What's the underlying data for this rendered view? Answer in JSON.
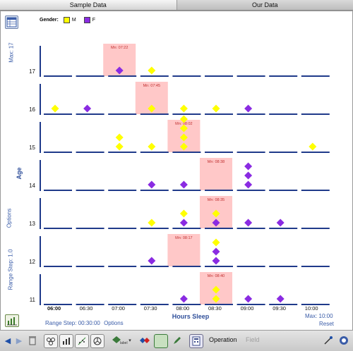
{
  "tabs": [
    {
      "label": "Sample Data",
      "active": true
    },
    {
      "label": "Our Data",
      "active": false
    }
  ],
  "legend": {
    "title": "Gender:",
    "items": [
      {
        "label": "M",
        "color": "#ffff00"
      },
      {
        "label": "F",
        "color": "#8a2be2"
      }
    ]
  },
  "left_panel": {
    "max_label": "Max: 17",
    "range_step_label": "Range Step: 1.0",
    "options_label": "Options"
  },
  "bottom_panel": {
    "range_step_label": "Range Step: 00:30:00",
    "options_label": "Options",
    "max_label": "Max: 10:00",
    "reset_label": "Reset"
  },
  "toolbar": {
    "operation_label": "Operation",
    "field_label": "Field"
  },
  "chart_data": {
    "type": "scatter",
    "title": "",
    "xlabel": "Hours Sleep",
    "ylabel": "Age",
    "x_ticks": [
      "06:00",
      "06:30",
      "07:00",
      "07:30",
      "08:00",
      "08:30",
      "09:00",
      "09:30",
      "10:00"
    ],
    "rows": [
      {
        "age": 17,
        "median_label": "Mn: 07:22",
        "median_bin": "07:00",
        "points": [
          {
            "x": "07:00",
            "g": "F",
            "i": 0
          },
          {
            "x": "07:30",
            "g": "M",
            "i": 0
          }
        ]
      },
      {
        "age": 16,
        "median_label": "Mn: 07:45",
        "median_bin": "07:30",
        "points": [
          {
            "x": "06:00",
            "g": "M",
            "i": 0
          },
          {
            "x": "06:30",
            "g": "F",
            "i": 0
          },
          {
            "x": "07:30",
            "g": "M",
            "i": 0
          },
          {
            "x": "08:00",
            "g": "M",
            "i": 0
          },
          {
            "x": "08:30",
            "g": "M",
            "i": 0
          },
          {
            "x": "09:00",
            "g": "F",
            "i": 0
          }
        ]
      },
      {
        "age": 15,
        "median_label": "Mn: 08:02",
        "median_bin": "08:00",
        "points": [
          {
            "x": "07:00",
            "g": "M",
            "i": 0
          },
          {
            "x": "07:00",
            "g": "M",
            "i": 1
          },
          {
            "x": "07:30",
            "g": "M",
            "i": 0
          },
          {
            "x": "08:00",
            "g": "M",
            "i": 0
          },
          {
            "x": "08:00",
            "g": "M",
            "i": 1
          },
          {
            "x": "08:00",
            "g": "M",
            "i": 2
          },
          {
            "x": "08:00",
            "g": "M",
            "i": 3
          },
          {
            "x": "10:00",
            "g": "M",
            "i": 0
          }
        ]
      },
      {
        "age": 14,
        "median_label": "Mn: 08:38",
        "median_bin": "08:30",
        "points": [
          {
            "x": "07:30",
            "g": "F",
            "i": 0
          },
          {
            "x": "08:00",
            "g": "F",
            "i": 0
          },
          {
            "x": "09:00",
            "g": "F",
            "i": 0
          },
          {
            "x": "09:00",
            "g": "F",
            "i": 1
          },
          {
            "x": "09:00",
            "g": "F",
            "i": 2
          }
        ]
      },
      {
        "age": 13,
        "median_label": "Mn: 08:35",
        "median_bin": "08:30",
        "points": [
          {
            "x": "07:30",
            "g": "M",
            "i": 0
          },
          {
            "x": "08:00",
            "g": "F",
            "i": 0
          },
          {
            "x": "08:00",
            "g": "M",
            "i": 1
          },
          {
            "x": "08:30",
            "g": "F",
            "i": 0
          },
          {
            "x": "08:30",
            "g": "M",
            "i": 1
          },
          {
            "x": "09:00",
            "g": "F",
            "i": 0
          },
          {
            "x": "09:30",
            "g": "F",
            "i": 0
          }
        ]
      },
      {
        "age": 12,
        "median_label": "Mn: 08:17",
        "median_bin": "08:00",
        "points": [
          {
            "x": "07:30",
            "g": "F",
            "i": 0
          },
          {
            "x": "08:30",
            "g": "F",
            "i": 0
          },
          {
            "x": "08:30",
            "g": "F",
            "i": 1
          },
          {
            "x": "08:30",
            "g": "M",
            "i": 2
          }
        ]
      },
      {
        "age": 11,
        "median_label": "Mn: 08:40",
        "median_bin": "08:30",
        "points": [
          {
            "x": "08:00",
            "g": "F",
            "i": 0
          },
          {
            "x": "08:30",
            "g": "M",
            "i": 0
          },
          {
            "x": "08:30",
            "g": "M",
            "i": 1
          },
          {
            "x": "09:00",
            "g": "F",
            "i": 0
          },
          {
            "x": "09:30",
            "g": "F",
            "i": 0
          }
        ]
      }
    ],
    "colors": {
      "M": "#ffff00",
      "F": "#8a2be2",
      "median_box": "#ffc8c8",
      "axis": "#1f3a8a"
    }
  }
}
